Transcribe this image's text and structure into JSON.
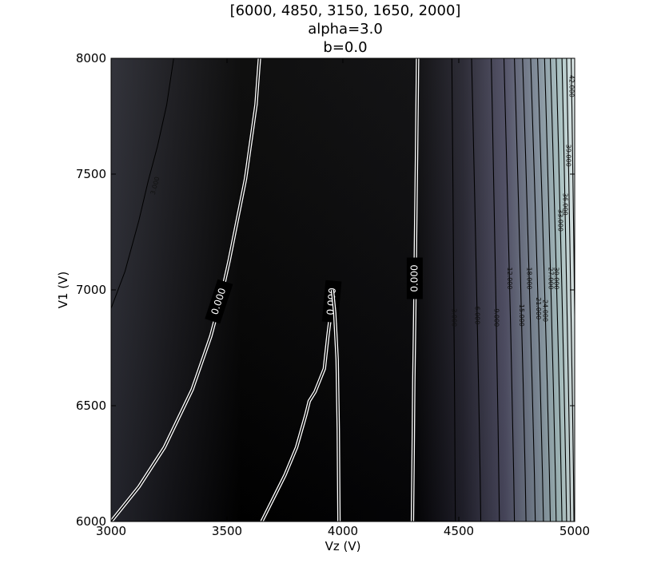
{
  "chart_data": {
    "type": "contour",
    "title_lines": [
      "[6000, 4850, 3150, 1650, 2000]",
      "alpha=3.0",
      "b=0.0"
    ],
    "xlabel": "Vz (V)",
    "ylabel": "V1 (V)",
    "xlim": [
      3000,
      5000
    ],
    "ylim": [
      6000,
      8000
    ],
    "x_ticks": [
      3000,
      3500,
      4000,
      4500,
      5000
    ],
    "y_ticks": [
      6000,
      6500,
      7000,
      7500,
      8000
    ],
    "x_tick_labels": [
      "3000",
      "3500",
      "4000",
      "4500",
      "5000"
    ],
    "y_tick_labels": [
      "6000",
      "6500",
      "7000",
      "7500",
      "8000"
    ],
    "colormap": "bone",
    "zero_contours": [
      {
        "label": "0.000",
        "points": [
          [
            3000,
            6000
          ],
          [
            3120,
            6150
          ],
          [
            3230,
            6320
          ],
          [
            3350,
            6570
          ],
          [
            3430,
            6800
          ],
          [
            3470,
            6950
          ],
          [
            3510,
            7130
          ],
          [
            3580,
            7480
          ],
          [
            3625,
            7800
          ],
          [
            3640,
            8000
          ]
        ]
      },
      {
        "label": "0.000",
        "points": [
          [
            3650,
            6000
          ],
          [
            3700,
            6100
          ],
          [
            3750,
            6200
          ],
          [
            3800,
            6320
          ],
          [
            3840,
            6460
          ],
          [
            3855,
            6520
          ],
          [
            3880,
            6560
          ],
          [
            3920,
            6660
          ],
          [
            3935,
            6800
          ],
          [
            3945,
            6880
          ]
        ]
      },
      {
        "label": "",
        "points": [
          [
            3955,
            7000
          ],
          [
            3965,
            6900
          ],
          [
            3975,
            6700
          ],
          [
            3980,
            6400
          ],
          [
            3983,
            6000
          ]
        ]
      },
      {
        "label": "0.000",
        "points": [
          [
            4300,
            6000
          ],
          [
            4303,
            6300
          ],
          [
            4306,
            6600
          ],
          [
            4310,
            6900
          ],
          [
            4313,
            7200
          ],
          [
            4318,
            7600
          ],
          [
            4322,
            8000
          ]
        ]
      }
    ],
    "level_contours": [
      {
        "label": "3.000",
        "x_bottom": 4485,
        "x_top": 4470
      },
      {
        "label": "6.000",
        "x_bottom": 4595,
        "x_top": 4555
      },
      {
        "label": "9.000",
        "x_bottom": 4675,
        "x_top": 4640
      },
      {
        "label": "12.000",
        "x_bottom": 4740,
        "x_top": 4695
      },
      {
        "label": "15.000",
        "x_bottom": 4790,
        "x_top": 4740
      },
      {
        "label": "18.000",
        "x_bottom": 4830,
        "x_top": 4775
      },
      {
        "label": "21.000",
        "x_bottom": 4865,
        "x_top": 4810
      },
      {
        "label": "24.000",
        "x_bottom": 4895,
        "x_top": 4840
      },
      {
        "label": "27.000",
        "x_bottom": 4920,
        "x_top": 4870
      },
      {
        "label": "30.000",
        "x_bottom": 4945,
        "x_top": 4895
      },
      {
        "label": "33.000",
        "x_bottom": 4965,
        "x_top": 4920
      },
      {
        "label": "36.000",
        "x_bottom": 4982,
        "x_top": 4945
      },
      {
        "label": "39.000",
        "x_bottom": 4997,
        "x_top": 4965
      },
      {
        "label": "42.000",
        "x_bottom": 5010,
        "x_top": 4985
      }
    ],
    "left_contour": {
      "label": "3.000",
      "points": [
        [
          3000,
          6920
        ],
        [
          3060,
          7080
        ],
        [
          3120,
          7300
        ],
        [
          3160,
          7470
        ],
        [
          3200,
          7620
        ],
        [
          3240,
          7800
        ],
        [
          3270,
          8000
        ]
      ]
    }
  }
}
